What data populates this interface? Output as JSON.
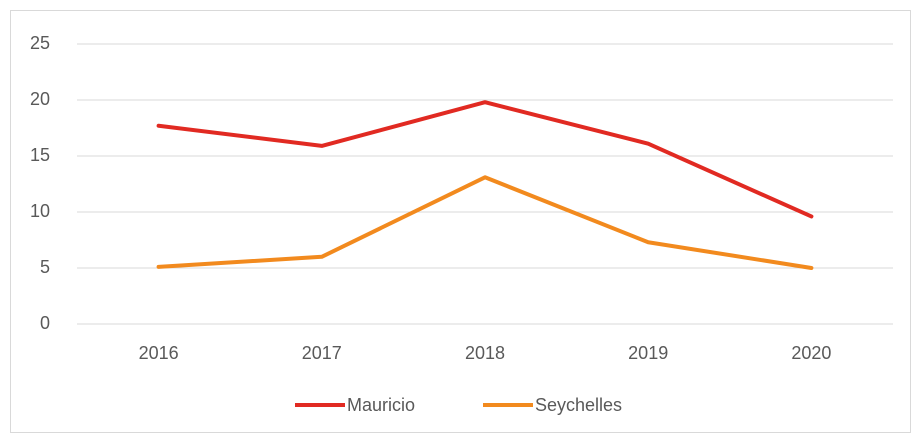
{
  "chart_data": {
    "type": "line",
    "categories": [
      "2016",
      "2017",
      "2018",
      "2019",
      "2020"
    ],
    "series": [
      {
        "name": "Mauricio",
        "color": "#e12a22",
        "values": [
          17.7,
          15.9,
          19.8,
          16.1,
          9.6
        ]
      },
      {
        "name": "Seychelles",
        "color": "#f28a1e",
        "values": [
          5.1,
          6.0,
          13.1,
          7.3,
          5.0
        ]
      }
    ],
    "ylim": [
      0,
      25
    ],
    "yticks": [
      0,
      5,
      10,
      15,
      20,
      25
    ],
    "grid": true,
    "legend": "bottom"
  }
}
